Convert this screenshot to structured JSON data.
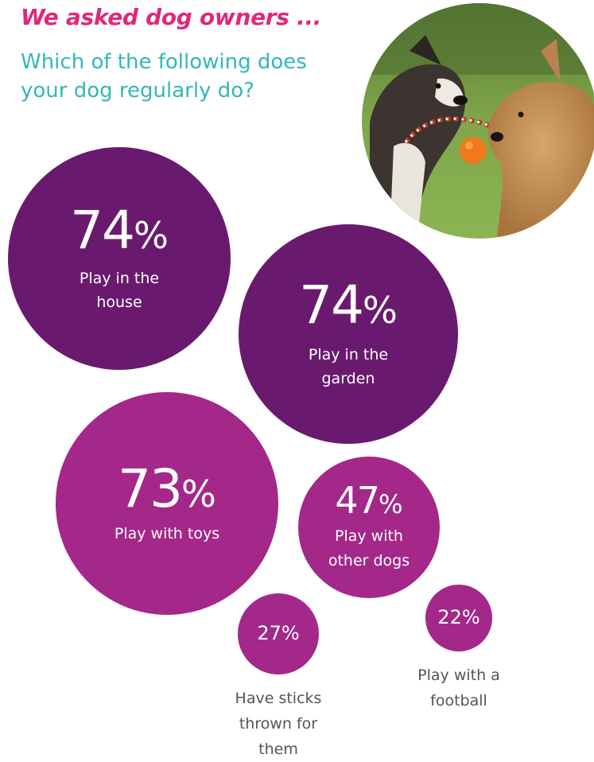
{
  "header": {
    "title": "We asked dog owners ...",
    "question": "Which of the following does your dog regularly do?"
  },
  "colors": {
    "title": "#e0287a",
    "question": "#33b7b8",
    "purple_dark": "#6a1a6e",
    "magenta": "#a3288a",
    "outside_label": "#555555"
  },
  "photo": {
    "icon": "dogs-playing-photo"
  },
  "chart_data": {
    "type": "bubble",
    "unit": "%",
    "items": [
      {
        "value": 74,
        "value_text": "74",
        "label_lines": [
          "Play in the",
          "house"
        ]
      },
      {
        "value": 74,
        "value_text": "74",
        "label_lines": [
          "Play in the",
          "garden"
        ]
      },
      {
        "value": 73,
        "value_text": "73",
        "label_lines": [
          "Play with toys"
        ]
      },
      {
        "value": 47,
        "value_text": "47",
        "label_lines": [
          "Play with",
          "other dogs"
        ]
      },
      {
        "value": 27,
        "value_text": "27",
        "label_lines": [
          "Have sticks",
          "thrown for",
          "them"
        ]
      },
      {
        "value": 22,
        "value_text": "22",
        "label_lines": [
          "Play with a",
          "football"
        ]
      }
    ]
  }
}
